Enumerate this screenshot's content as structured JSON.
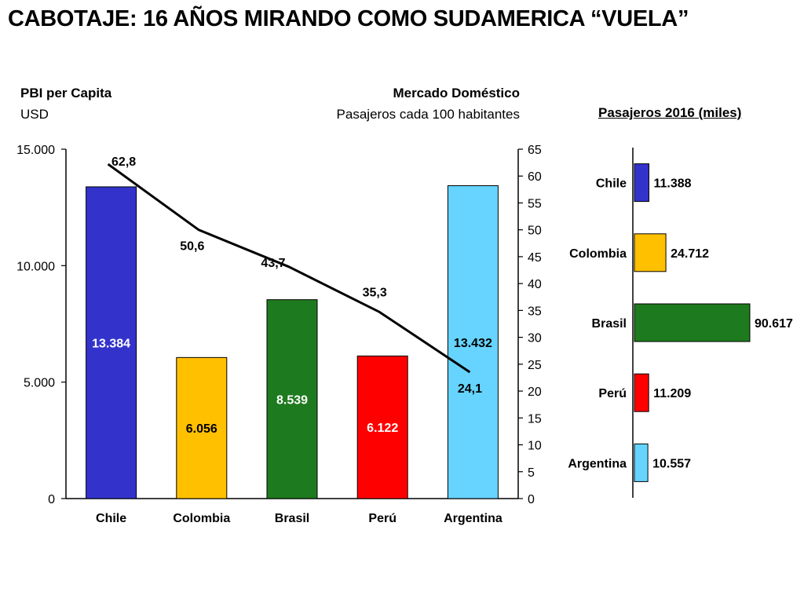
{
  "slide": {
    "title": "CABOTAJE: 16 AÑOS MIRANDO COMO SUDAMERICA “VUELA”"
  },
  "left_chart": {
    "left_title": "PBI per Capita",
    "left_unit": "USD",
    "right_title": "Mercado Doméstico",
    "right_unit": "Pasajeros cada 100 habitantes"
  },
  "right_chart": {
    "title": "Pasajeros 2016 (miles)"
  },
  "chart_data": [
    {
      "type": "bar",
      "categories": [
        "Chile",
        "Colombia",
        "Brasil",
        "Perú",
        "Argentina"
      ],
      "series": [
        {
          "name": "PBI per Capita",
          "values": [
            13384,
            6056,
            8539,
            6122,
            13432
          ],
          "labels": [
            "13.384",
            "6.056",
            "8.539",
            "6.122",
            "13.432"
          ],
          "colors": [
            "#3333cc",
            "#ffc000",
            "#1e7a1e",
            "#ff0000",
            "#66d4ff"
          ],
          "label_colors": [
            "#ffffff",
            "#000000",
            "#ffffff",
            "#ffffff",
            "#000000"
          ],
          "axis": "left"
        },
        {
          "name": "Mercado Doméstico",
          "type": "line",
          "values": [
            62.8,
            50.6,
            43.7,
            35.3,
            24.1
          ],
          "labels": [
            "62,8",
            "50,6",
            "43,7",
            "35,3",
            "24,1"
          ],
          "color": "#000000",
          "axis": "right"
        }
      ],
      "y_left": {
        "ylim": [
          0,
          15000
        ],
        "ticks": [
          0,
          5000,
          10000,
          15000
        ],
        "tick_labels": [
          "0",
          "5.000",
          "10.000",
          "15.000"
        ]
      },
      "y_right": {
        "ylim": [
          0,
          65
        ],
        "ticks": [
          0,
          5,
          10,
          15,
          20,
          25,
          30,
          35,
          40,
          45,
          50,
          55,
          60,
          65
        ],
        "tick_labels": [
          "0",
          "5",
          "10",
          "15",
          "20",
          "25",
          "30",
          "35",
          "40",
          "45",
          "50",
          "55",
          "60",
          "65"
        ]
      },
      "grid": false,
      "legend": "none"
    },
    {
      "type": "bar",
      "orientation": "horizontal",
      "categories": [
        "Chile",
        "Colombia",
        "Brasil",
        "Perú",
        "Argentina"
      ],
      "values": [
        11388,
        24712,
        90617,
        11209,
        10557
      ],
      "labels": [
        "11.388",
        "24.712",
        "90.617",
        "11.209",
        "10.557"
      ],
      "colors": [
        "#3333cc",
        "#ffc000",
        "#1e7a1e",
        "#ff0000",
        "#66d4ff"
      ],
      "grid": false,
      "legend": "none"
    }
  ]
}
